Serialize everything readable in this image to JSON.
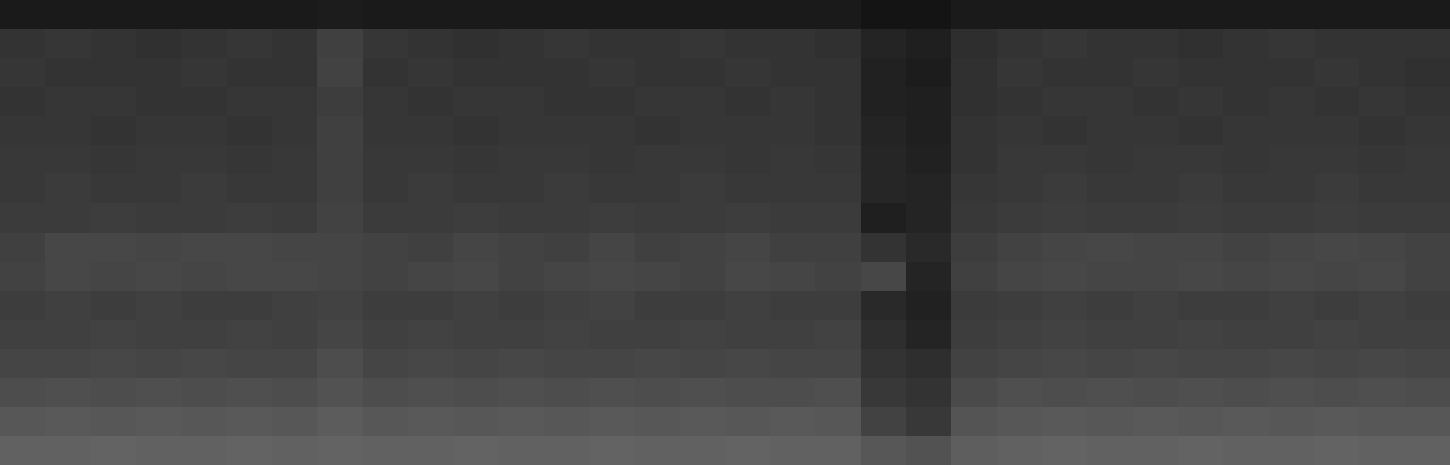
{
  "chart_data": {
    "type": "heatmap",
    "tick_labels": false,
    "color_range": [
      0,
      100
    ],
    "cells": [
      [
        10,
        10,
        10,
        10,
        10,
        10,
        10,
        11,
        10,
        10,
        10,
        10,
        10,
        10,
        10,
        10,
        10,
        10,
        10,
        8,
        8,
        10,
        10,
        10,
        10,
        10,
        10,
        10,
        10,
        10,
        10,
        10
      ],
      [
        20,
        21,
        20,
        19,
        20,
        21,
        20,
        25,
        21,
        20,
        19,
        20,
        21,
        20,
        20,
        21,
        20,
        20,
        19,
        14,
        12,
        18,
        20,
        21,
        20,
        20,
        19,
        20,
        21,
        20,
        20,
        20
      ],
      [
        21,
        20,
        20,
        20,
        21,
        20,
        20,
        26,
        20,
        21,
        20,
        20,
        20,
        21,
        20,
        20,
        21,
        20,
        20,
        13,
        11,
        19,
        21,
        20,
        20,
        21,
        20,
        20,
        20,
        21,
        20,
        19
      ],
      [
        20,
        21,
        21,
        20,
        20,
        21,
        21,
        24,
        21,
        20,
        21,
        21,
        20,
        20,
        21,
        21,
        20,
        21,
        20,
        13,
        12,
        19,
        20,
        21,
        21,
        20,
        21,
        20,
        21,
        20,
        21,
        20
      ],
      [
        21,
        21,
        20,
        21,
        21,
        20,
        21,
        25,
        21,
        21,
        20,
        21,
        21,
        21,
        20,
        21,
        21,
        21,
        20,
        14,
        12,
        20,
        21,
        20,
        21,
        21,
        20,
        21,
        21,
        21,
        20,
        21
      ],
      [
        22,
        22,
        21,
        22,
        22,
        21,
        22,
        25,
        22,
        22,
        21,
        22,
        22,
        21,
        22,
        22,
        21,
        22,
        21,
        15,
        13,
        20,
        22,
        22,
        21,
        22,
        22,
        21,
        22,
        22,
        21,
        22
      ],
      [
        22,
        23,
        22,
        22,
        23,
        22,
        22,
        25,
        22,
        23,
        22,
        22,
        23,
        22,
        22,
        23,
        22,
        22,
        22,
        15,
        14,
        21,
        22,
        23,
        22,
        22,
        23,
        22,
        22,
        23,
        22,
        22
      ],
      [
        23,
        23,
        24,
        23,
        23,
        24,
        23,
        26,
        23,
        23,
        24,
        23,
        23,
        24,
        23,
        23,
        24,
        23,
        23,
        12,
        14,
        22,
        23,
        24,
        23,
        23,
        24,
        23,
        23,
        24,
        23,
        23
      ],
      [
        25,
        28,
        28,
        27,
        28,
        28,
        27,
        27,
        26,
        25,
        27,
        26,
        25,
        27,
        25,
        26,
        27,
        25,
        25,
        20,
        16,
        24,
        26,
        27,
        28,
        27,
        27,
        26,
        27,
        28,
        27,
        26
      ],
      [
        26,
        28,
        27,
        28,
        27,
        28,
        28,
        27,
        26,
        27,
        28,
        26,
        27,
        28,
        27,
        26,
        28,
        27,
        26,
        28,
        14,
        25,
        27,
        28,
        27,
        27,
        28,
        27,
        28,
        27,
        28,
        26
      ],
      [
        24,
        25,
        24,
        25,
        24,
        24,
        25,
        26,
        24,
        24,
        25,
        24,
        25,
        26,
        24,
        24,
        25,
        24,
        24,
        16,
        13,
        23,
        24,
        25,
        24,
        25,
        24,
        24,
        25,
        24,
        25,
        24
      ],
      [
        25,
        25,
        26,
        25,
        25,
        26,
        25,
        27,
        25,
        26,
        25,
        25,
        26,
        25,
        25,
        26,
        25,
        25,
        26,
        18,
        14,
        24,
        25,
        26,
        25,
        25,
        26,
        25,
        25,
        26,
        25,
        25
      ],
      [
        27,
        27,
        28,
        27,
        28,
        27,
        27,
        30,
        27,
        28,
        27,
        28,
        27,
        27,
        28,
        27,
        28,
        27,
        27,
        20,
        18,
        26,
        27,
        28,
        27,
        28,
        27,
        27,
        28,
        27,
        28,
        27
      ],
      [
        30,
        31,
        30,
        31,
        30,
        31,
        30,
        32,
        30,
        31,
        30,
        31,
        30,
        31,
        30,
        31,
        30,
        30,
        31,
        22,
        20,
        29,
        31,
        30,
        31,
        30,
        31,
        30,
        31,
        30,
        31,
        30
      ],
      [
        34,
        35,
        34,
        35,
        34,
        35,
        34,
        36,
        34,
        35,
        34,
        35,
        34,
        35,
        34,
        35,
        34,
        35,
        34,
        26,
        22,
        33,
        34,
        35,
        34,
        35,
        34,
        35,
        34,
        35,
        34,
        34
      ],
      [
        38,
        38,
        39,
        38,
        38,
        39,
        38,
        39,
        38,
        38,
        39,
        38,
        38,
        39,
        38,
        38,
        39,
        38,
        38,
        34,
        32,
        37,
        38,
        39,
        38,
        38,
        39,
        38,
        38,
        39,
        38,
        38
      ]
    ]
  }
}
